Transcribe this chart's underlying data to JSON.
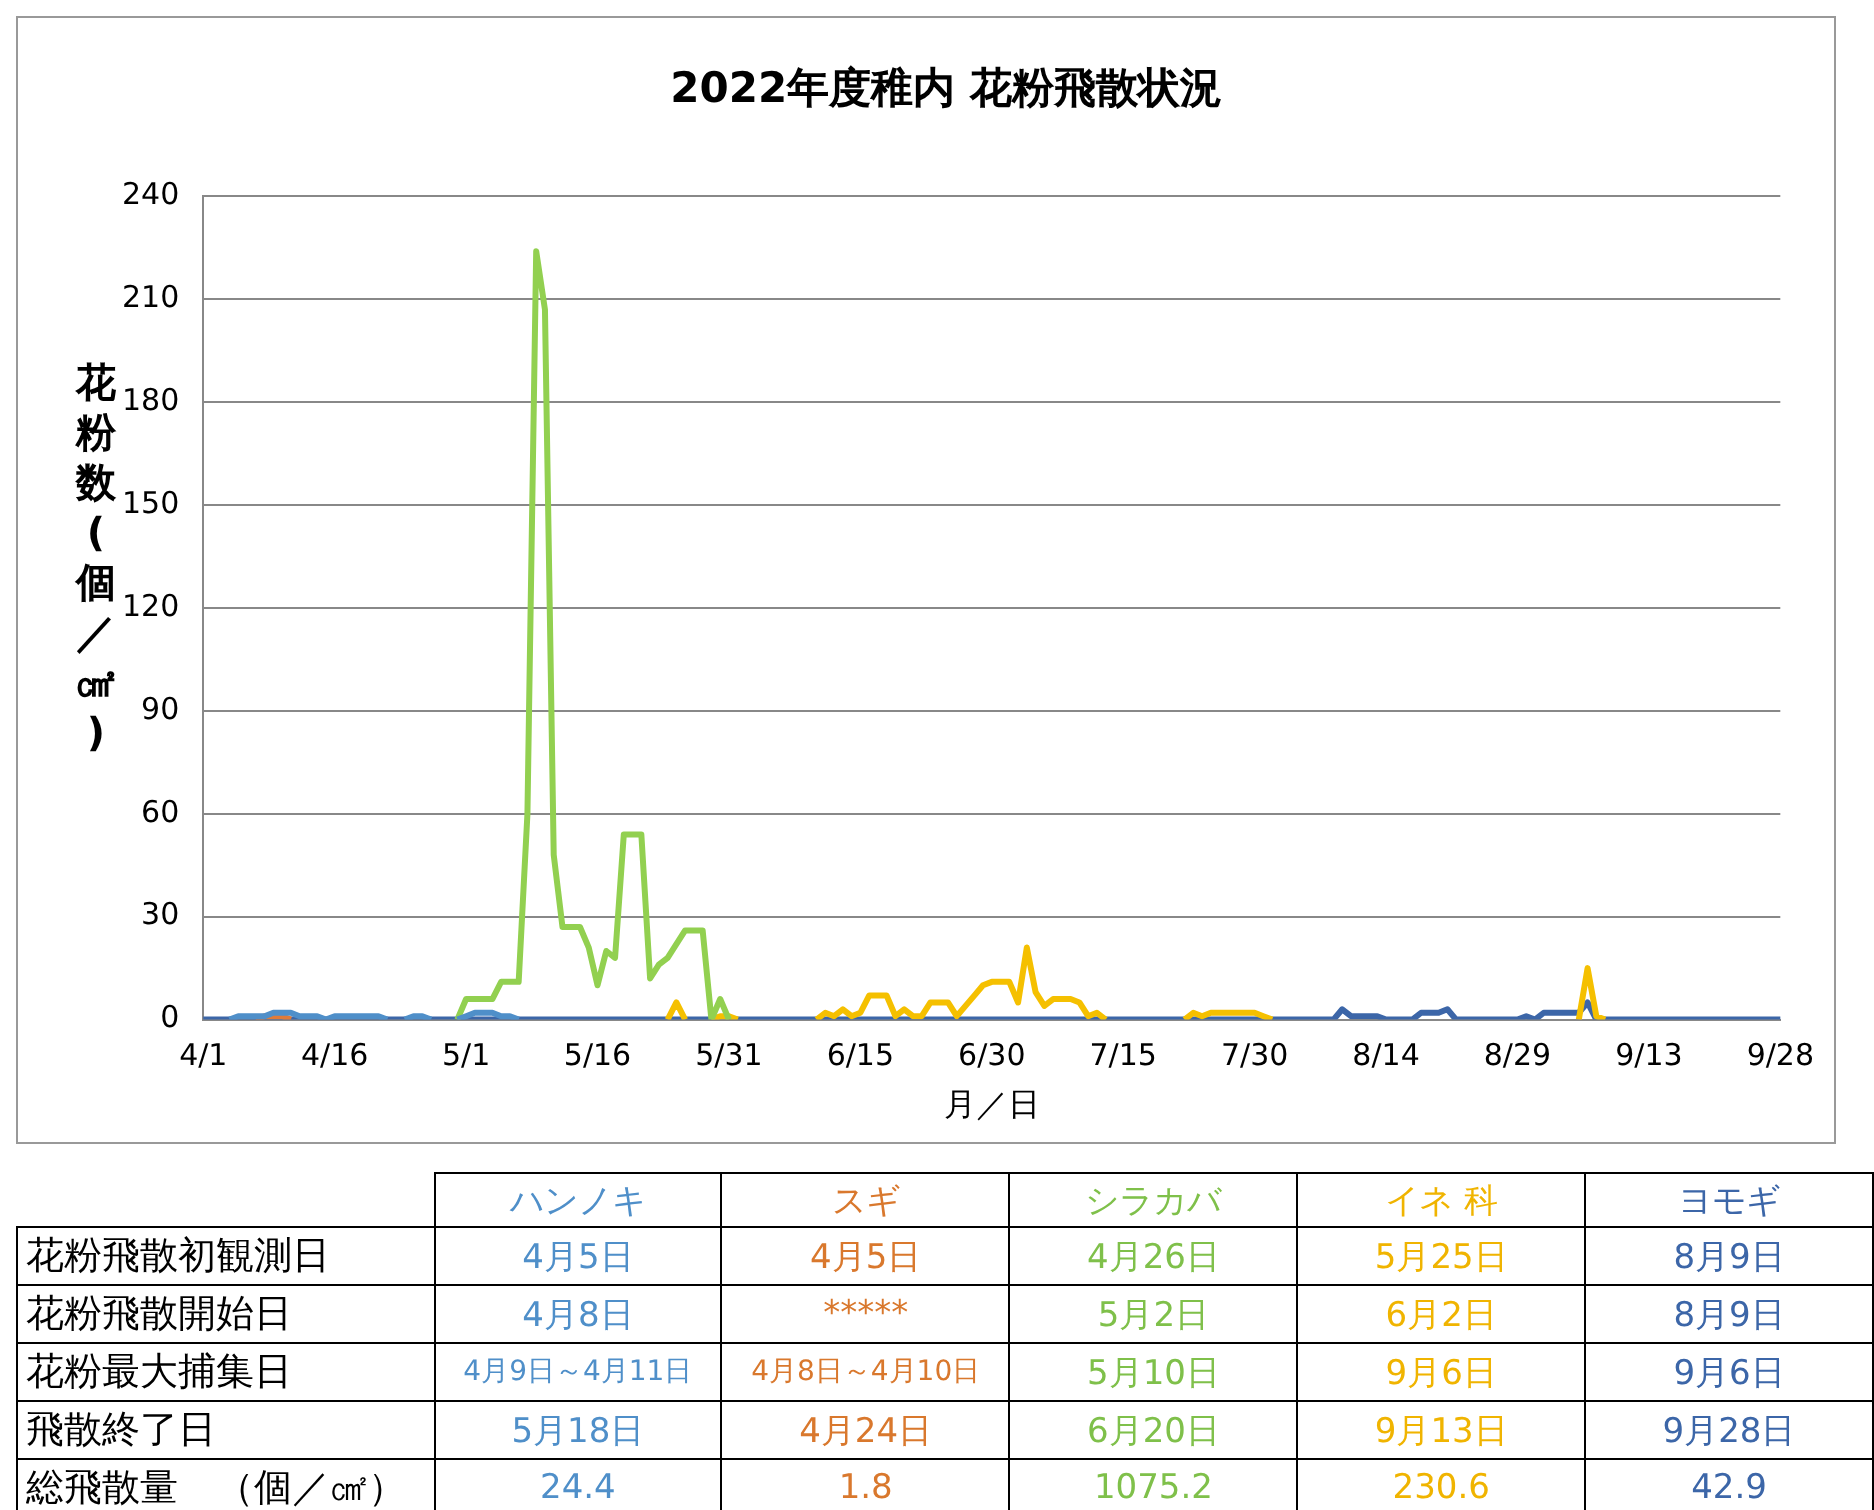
{
  "chart_data": [
    {
      "type": "line",
      "title": "2022年度稚内 花粉飛散状況",
      "xlabel": "月／日",
      "ylabel": "花粉数(個／㎠)",
      "ylim": [
        0,
        240
      ],
      "yticks": [
        0,
        30,
        60,
        90,
        120,
        150,
        180,
        210,
        240
      ],
      "grid": "y",
      "marker": "none",
      "line_style": "solid",
      "categories": [
        "4/1",
        null,
        null,
        null,
        null,
        null,
        null,
        null,
        null,
        null,
        null,
        null,
        null,
        null,
        null,
        "4/16",
        null,
        null,
        null,
        null,
        null,
        null,
        null,
        null,
        null,
        null,
        null,
        null,
        null,
        null,
        "5/1",
        null,
        null,
        null,
        null,
        null,
        null,
        null,
        null,
        null,
        null,
        null,
        null,
        null,
        null,
        "5/16",
        null,
        null,
        null,
        null,
        null,
        null,
        null,
        null,
        null,
        null,
        null,
        null,
        null,
        null,
        "5/31",
        null,
        null,
        null,
        null,
        null,
        null,
        null,
        null,
        null,
        null,
        null,
        null,
        null,
        null,
        "6/15",
        null,
        null,
        null,
        null,
        null,
        null,
        null,
        null,
        null,
        null,
        null,
        null,
        null,
        null,
        "6/30",
        null,
        null,
        null,
        null,
        null,
        null,
        null,
        null,
        null,
        null,
        null,
        null,
        null,
        null,
        "7/15",
        null,
        null,
        null,
        null,
        null,
        null,
        null,
        null,
        null,
        null,
        null,
        null,
        null,
        null,
        "7/30",
        null,
        null,
        null,
        null,
        null,
        null,
        null,
        null,
        null,
        null,
        null,
        null,
        null,
        null,
        "8/14",
        null,
        null,
        null,
        null,
        null,
        null,
        null,
        null,
        null,
        null,
        null,
        null,
        null,
        null,
        "8/29",
        null,
        null,
        null,
        null,
        null,
        null,
        null,
        null,
        null,
        null,
        null,
        null,
        null,
        null,
        "9/13",
        null,
        null,
        null,
        null,
        null,
        null,
        null,
        null,
        null,
        null,
        null,
        null,
        null,
        null,
        "9/28"
      ],
      "series": [
        {
          "color": "#4f8fc9",
          "values": [
            null,
            null,
            null,
            0,
            1,
            1,
            1,
            1,
            2,
            2,
            2,
            1,
            1,
            1,
            0,
            1,
            1,
            1,
            1,
            1,
            1,
            0,
            null,
            0,
            1,
            1,
            0,
            null,
            null,
            0,
            1,
            2,
            2,
            2,
            1,
            1,
            0,
            null,
            null,
            null,
            null,
            null,
            null,
            null,
            null,
            null,
            null,
            null,
            null,
            null,
            null,
            null,
            null,
            null,
            null,
            null,
            null,
            null,
            null,
            null,
            null,
            null,
            null,
            null,
            null,
            null,
            null,
            null,
            null,
            null,
            null,
            null,
            null,
            null,
            null,
            null,
            null,
            null,
            null,
            null,
            null,
            null,
            null,
            null,
            null,
            null,
            null,
            null,
            null,
            null,
            null,
            null,
            null,
            null,
            null,
            null,
            null,
            null,
            null,
            null,
            null,
            null,
            null,
            null,
            null,
            null,
            null,
            null,
            null,
            null,
            null,
            null,
            null,
            null,
            null,
            null,
            null,
            null,
            null,
            null,
            null,
            null,
            null,
            null,
            null,
            null,
            null,
            null,
            null,
            null,
            null,
            null,
            null,
            null,
            null,
            null,
            null,
            null,
            null,
            null,
            null,
            null,
            null,
            null,
            null,
            null,
            null,
            null,
            null,
            null,
            null,
            null,
            null,
            null,
            null,
            null,
            null,
            null,
            null,
            null,
            null,
            null,
            null,
            null,
            null,
            null,
            null,
            null,
            null,
            null,
            null,
            null,
            null,
            null,
            null,
            null,
            null,
            null,
            null,
            null,
            null
          ]
        },
        {
          "color": "#e07b39",
          "values": [
            null,
            null,
            null,
            null,
            null,
            null,
            0,
            1,
            1,
            1,
            0,
            null,
            null,
            null,
            null,
            null,
            null,
            null,
            null,
            null,
            null,
            null,
            null,
            null,
            null,
            null,
            null,
            null,
            null,
            null,
            null,
            null,
            null,
            null,
            null,
            null,
            null,
            null,
            null,
            null,
            null,
            null,
            null,
            null,
            null,
            null,
            null,
            null,
            null,
            null,
            null,
            null,
            null,
            null,
            null,
            null,
            null,
            null,
            null,
            null,
            null,
            null,
            null,
            null,
            null,
            null,
            null,
            null,
            null,
            null,
            null,
            null,
            null,
            null,
            null,
            null,
            null,
            null,
            null,
            null,
            null,
            null,
            null,
            null,
            null,
            null,
            null,
            null,
            null,
            null,
            null,
            null,
            null,
            null,
            null,
            null,
            null,
            null,
            null,
            null,
            null,
            null,
            null,
            null,
            null,
            null,
            null,
            null,
            null,
            null,
            null,
            null,
            null,
            null,
            null,
            null,
            null,
            null,
            null,
            null,
            null,
            null,
            null,
            null,
            null,
            null,
            null,
            null,
            null,
            null,
            null,
            null,
            null,
            null,
            null,
            null,
            null,
            null,
            null,
            null,
            null,
            null,
            null,
            null,
            null,
            null,
            null,
            null,
            null,
            null,
            null,
            null,
            null,
            null,
            null,
            null,
            null,
            null,
            null,
            null,
            null,
            null,
            null,
            null,
            null,
            null,
            null,
            null,
            null,
            null,
            null,
            null,
            null,
            null,
            null,
            null,
            null,
            null,
            null,
            null,
            null
          ]
        },
        {
          "color": "#92d050",
          "values": [
            null,
            null,
            null,
            null,
            null,
            null,
            null,
            null,
            null,
            null,
            null,
            null,
            null,
            null,
            null,
            null,
            null,
            null,
            null,
            null,
            null,
            null,
            null,
            null,
            null,
            null,
            null,
            null,
            null,
            0,
            6,
            6,
            6,
            6,
            11,
            11,
            11,
            60,
            224,
            207,
            48,
            27,
            27,
            27,
            21,
            10,
            20,
            18,
            54,
            54,
            54,
            12,
            16,
            18,
            22,
            26,
            26,
            26,
            0,
            6,
            0,
            null,
            null,
            null,
            null,
            null,
            null,
            null,
            null,
            null,
            null,
            null,
            null,
            null,
            null,
            null,
            null,
            null,
            null,
            null,
            null,
            null,
            null,
            null,
            null,
            null,
            null,
            null,
            null,
            null,
            null,
            null,
            null,
            null,
            null,
            null,
            null,
            null,
            null,
            null,
            null,
            null,
            null,
            null,
            null,
            null,
            null,
            null,
            null,
            null,
            null,
            null,
            null,
            null,
            null,
            null,
            null,
            null,
            null,
            null,
            null,
            null,
            null,
            null,
            null,
            null,
            null,
            null,
            null,
            null,
            null,
            null,
            null,
            null,
            null,
            null,
            null,
            null,
            null,
            null,
            null,
            null,
            null,
            null,
            null,
            null,
            null,
            null,
            null,
            null,
            null,
            null,
            null,
            null,
            null,
            null,
            null,
            null,
            null,
            null,
            null,
            null,
            null,
            null,
            null,
            null,
            null,
            null,
            null,
            null,
            null,
            null,
            null,
            null,
            null,
            null,
            null,
            null,
            null,
            null,
            null
          ]
        },
        {
          "color": "#f5c000",
          "values": [
            null,
            null,
            null,
            null,
            null,
            null,
            null,
            null,
            null,
            null,
            null,
            null,
            null,
            null,
            null,
            null,
            null,
            null,
            null,
            null,
            null,
            null,
            null,
            null,
            null,
            null,
            null,
            null,
            null,
            null,
            null,
            null,
            null,
            null,
            null,
            null,
            null,
            null,
            null,
            null,
            null,
            null,
            null,
            null,
            null,
            null,
            null,
            null,
            null,
            null,
            null,
            null,
            null,
            0,
            5,
            0,
            null,
            null,
            0,
            1,
            1,
            0,
            null,
            null,
            null,
            null,
            null,
            null,
            null,
            null,
            0,
            2,
            1,
            3,
            1,
            2,
            7,
            7,
            7,
            1,
            3,
            1,
            1,
            5,
            5,
            5,
            1,
            4,
            7,
            10,
            11,
            11,
            11,
            5,
            21,
            8,
            4,
            6,
            6,
            6,
            5,
            1,
            2,
            0,
            null,
            null,
            null,
            null,
            null,
            null,
            null,
            null,
            0,
            2,
            1,
            2,
            2,
            2,
            2,
            2,
            2,
            1,
            0,
            null,
            null,
            null,
            null,
            null,
            null,
            null,
            null,
            null,
            null,
            null,
            null,
            null,
            null,
            null,
            null,
            null,
            null,
            null,
            null,
            null,
            null,
            null,
            null,
            null,
            null,
            null,
            null,
            null,
            null,
            null,
            null,
            null,
            null,
            0,
            15,
            1,
            0,
            null,
            null,
            null,
            null,
            null,
            null,
            null,
            null,
            null,
            null,
            null,
            null,
            null,
            null,
            null,
            null,
            null,
            null,
            null,
            null
          ]
        },
        {
          "color": "#3c66a8",
          "values": [
            0,
            0,
            0,
            0,
            0,
            0,
            0,
            0,
            0,
            0,
            0,
            0,
            0,
            0,
            0,
            0,
            0,
            0,
            0,
            0,
            0,
            0,
            0,
            0,
            0,
            0,
            0,
            0,
            0,
            0,
            0,
            0,
            0,
            0,
            0,
            0,
            0,
            0,
            0,
            0,
            0,
            0,
            0,
            0,
            0,
            0,
            0,
            0,
            0,
            0,
            0,
            0,
            0,
            0,
            0,
            0,
            0,
            0,
            0,
            null,
            0,
            0,
            0,
            0,
            0,
            0,
            0,
            0,
            0,
            0,
            0,
            0,
            0,
            0,
            0,
            0,
            0,
            0,
            0,
            0,
            0,
            0,
            0,
            0,
            0,
            0,
            0,
            0,
            0,
            0,
            0,
            0,
            0,
            0,
            0,
            0,
            0,
            0,
            0,
            0,
            0,
            0,
            0,
            0,
            0,
            0,
            0,
            0,
            0,
            0,
            0,
            0,
            0,
            0,
            0,
            0,
            0,
            0,
            0,
            0,
            0,
            0,
            0,
            0,
            0,
            0,
            0,
            0,
            0,
            0,
            3,
            1,
            1,
            1,
            1,
            0,
            0,
            0,
            0,
            2,
            2,
            2,
            3,
            0,
            0,
            0,
            0,
            0,
            0,
            0,
            0,
            1,
            0,
            2,
            2,
            2,
            2,
            2,
            5,
            0,
            0,
            0,
            0,
            0,
            0,
            0,
            0,
            0,
            0,
            0,
            0,
            0,
            0,
            0,
            0,
            0,
            0,
            0,
            0,
            0,
            0
          ]
        }
      ]
    },
    {
      "type": "other",
      "categories": [
        "ハンノキ",
        "スギ",
        "シラカバ",
        "イネ 科",
        "ヨモギ"
      ],
      "colors": [
        "#4f8fc9",
        "#d9782d",
        "#7fc04a",
        "#f0b400",
        "#3c66a8"
      ],
      "y_categories": [
        "花粉飛散初観測日",
        "花粉飛散開始日",
        "花粉最大捕集日",
        "飛散終了日",
        "総飛散量　（個／㎠）"
      ],
      "cell_labels": [
        [
          "4月5日",
          "4月5日",
          "4月26日",
          "5月25日",
          "8月9日"
        ],
        [
          "4月8日",
          "*****",
          "5月2日",
          "6月2日",
          "8月9日"
        ],
        [
          "4月9日～4月11日",
          "4月8日～4月10日",
          "5月10日",
          "9月6日",
          "9月6日"
        ],
        [
          "5月18日",
          "4月24日",
          "6月20日",
          "9月13日",
          "9月28日"
        ],
        [
          "24.4",
          "1.8",
          "1075.2",
          "230.6",
          "42.9"
        ]
      ]
    }
  ]
}
